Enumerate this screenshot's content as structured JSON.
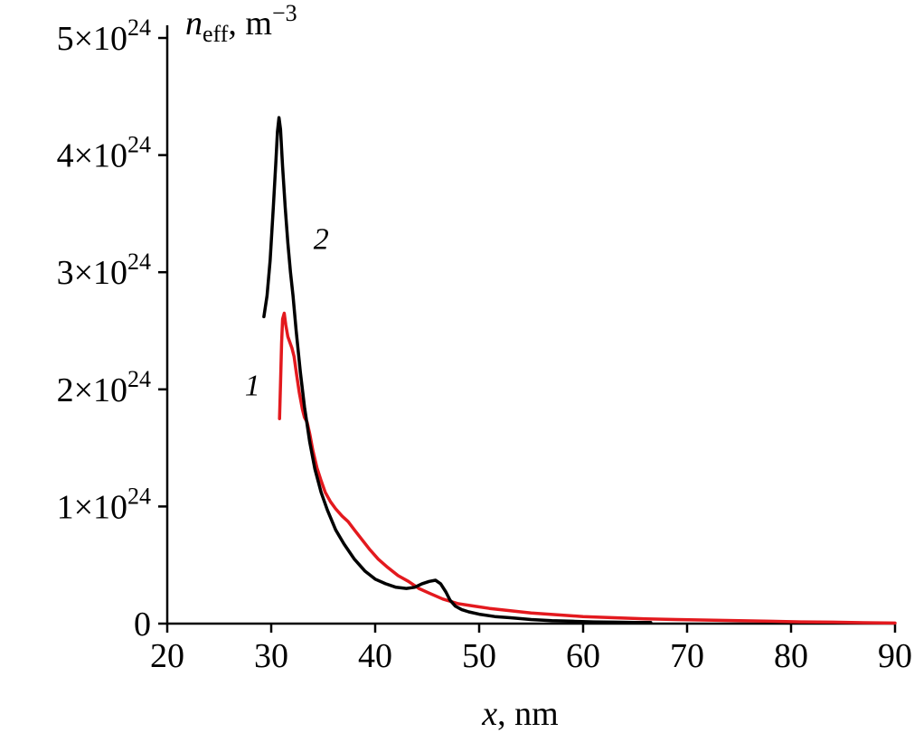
{
  "figure": {
    "background": "#ffffff",
    "axis_color": "#000000"
  },
  "chart_data": {
    "type": "line",
    "title": "",
    "xlabel": {
      "italic": "x",
      "rest": ", nm"
    },
    "ylabel": {
      "italic": "n",
      "sub": "eff",
      "rest": ", m",
      "sup": "−3"
    },
    "xlim": [
      20,
      90
    ],
    "ylim": [
      0,
      5
    ],
    "y_units": "10^24 m^-3",
    "grid": false,
    "legend_position": "inline-curve-labels",
    "x_ticks": [
      {
        "value": 20,
        "label": "20"
      },
      {
        "value": 30,
        "label": "30"
      },
      {
        "value": 40,
        "label": "40"
      },
      {
        "value": 50,
        "label": "50"
      },
      {
        "value": 60,
        "label": "60"
      },
      {
        "value": 70,
        "label": "70"
      },
      {
        "value": 80,
        "label": "80"
      },
      {
        "value": 90,
        "label": "90"
      }
    ],
    "y_ticks": [
      {
        "value": 0,
        "base": "0",
        "exp": ""
      },
      {
        "value": 1,
        "base": "1×10",
        "exp": "24"
      },
      {
        "value": 2,
        "base": "2×10",
        "exp": "24"
      },
      {
        "value": 3,
        "base": "3×10",
        "exp": "24"
      },
      {
        "value": 4,
        "base": "4×10",
        "exp": "24"
      },
      {
        "value": 5,
        "base": "5×10",
        "exp": "24"
      }
    ],
    "series": [
      {
        "name": "1",
        "label": "1",
        "color": "#e3191e",
        "label_pos": [
          28.2,
          1.95
        ],
        "x": [
          30.8,
          30.9,
          31.0,
          31.1,
          31.25,
          31.4,
          31.6,
          31.8,
          32.0,
          32.2,
          32.45,
          32.7,
          33.0,
          33.2,
          33.45,
          33.7,
          34.0,
          34.4,
          34.8,
          35.2,
          35.7,
          36.2,
          36.8,
          37.4,
          38.0,
          38.7,
          39.5,
          40.3,
          41.2,
          42.2,
          43.2,
          44.2,
          45.2,
          46.5,
          48.0,
          49.5,
          51.0,
          53.0,
          55.0,
          57.5,
          60.0,
          63.0,
          66.0,
          69.0,
          72.0,
          75.0,
          78.0,
          81.0,
          84.0,
          87.0,
          90.0
        ],
        "y": [
          1.75,
          2.05,
          2.4,
          2.6,
          2.65,
          2.55,
          2.45,
          2.4,
          2.35,
          2.28,
          2.12,
          1.97,
          1.83,
          1.76,
          1.72,
          1.62,
          1.48,
          1.33,
          1.22,
          1.12,
          1.04,
          0.98,
          0.92,
          0.87,
          0.8,
          0.72,
          0.63,
          0.55,
          0.48,
          0.41,
          0.36,
          0.3,
          0.26,
          0.21,
          0.17,
          0.15,
          0.13,
          0.11,
          0.09,
          0.075,
          0.06,
          0.05,
          0.04,
          0.035,
          0.03,
          0.025,
          0.02,
          0.015,
          0.012,
          0.008,
          0.005
        ]
      },
      {
        "name": "2",
        "label": "2",
        "color": "#000000",
        "label_pos": [
          34.8,
          3.2
        ],
        "x": [
          29.3,
          29.6,
          29.9,
          30.2,
          30.45,
          30.6,
          30.75,
          30.9,
          31.1,
          31.35,
          31.6,
          31.85,
          32.1,
          32.4,
          32.8,
          33.2,
          33.7,
          34.2,
          34.8,
          35.4,
          36.2,
          37.0,
          38.0,
          39.0,
          40.0,
          41.0,
          42.0,
          43.0,
          43.8,
          44.5,
          45.2,
          45.8,
          46.3,
          46.8,
          47.2,
          47.7,
          48.3,
          49.0,
          50.0,
          51.5,
          53.0,
          55.0,
          57.0,
          59.0,
          61.0,
          63.0,
          65.0,
          66.5
        ],
        "y": [
          2.62,
          2.8,
          3.1,
          3.55,
          3.95,
          4.2,
          4.32,
          4.22,
          3.9,
          3.55,
          3.25,
          3.0,
          2.8,
          2.5,
          2.15,
          1.85,
          1.55,
          1.32,
          1.12,
          0.97,
          0.8,
          0.68,
          0.55,
          0.45,
          0.38,
          0.34,
          0.31,
          0.3,
          0.31,
          0.34,
          0.36,
          0.37,
          0.34,
          0.27,
          0.2,
          0.15,
          0.12,
          0.1,
          0.08,
          0.06,
          0.05,
          0.035,
          0.025,
          0.02,
          0.015,
          0.012,
          0.01,
          0.01
        ]
      }
    ]
  }
}
